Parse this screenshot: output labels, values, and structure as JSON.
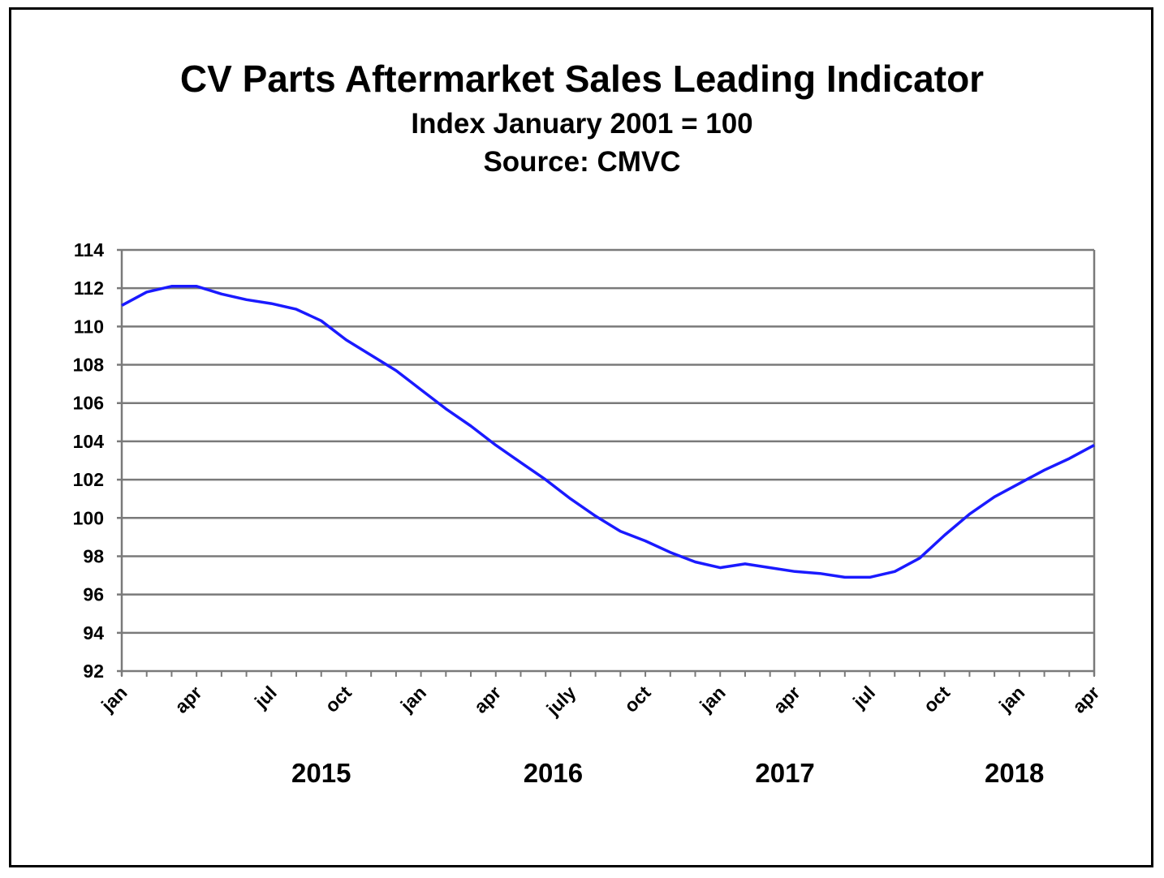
{
  "chart_data": {
    "type": "line",
    "title": "CV Parts Aftermarket Sales Leading Indicator",
    "subtitle": "Index January 2001 = 100",
    "source": "Source: CMVC",
    "xlabel": "",
    "ylabel": "",
    "ylim": [
      92,
      114
    ],
    "yticks": [
      "92",
      "94",
      "96",
      "98",
      "100",
      "102",
      "104",
      "106",
      "108",
      "110",
      "112",
      "114"
    ],
    "xtick_labels": [
      "jan",
      "apr",
      "jul",
      "oct",
      "jan",
      "apr",
      "july",
      "oct",
      "jan",
      "apr",
      "jul",
      "oct",
      "jan",
      "apr"
    ],
    "year_labels": [
      "2015",
      "2016",
      "2017",
      "2018"
    ],
    "grid": "horizontal",
    "line_color": "#1a1aff",
    "x": [
      "2015-01",
      "2015-02",
      "2015-03",
      "2015-04",
      "2015-05",
      "2015-06",
      "2015-07",
      "2015-08",
      "2015-09",
      "2015-10",
      "2015-11",
      "2015-12",
      "2016-01",
      "2016-02",
      "2016-03",
      "2016-04",
      "2016-05",
      "2016-06",
      "2016-07",
      "2016-08",
      "2016-09",
      "2016-10",
      "2016-11",
      "2016-12",
      "2017-01",
      "2017-02",
      "2017-03",
      "2017-04",
      "2017-05",
      "2017-06",
      "2017-07",
      "2017-08",
      "2017-09",
      "2017-10",
      "2017-11",
      "2017-12",
      "2018-01",
      "2018-02",
      "2018-03",
      "2018-04"
    ],
    "values": [
      111.1,
      111.8,
      112.1,
      112.1,
      111.7,
      111.4,
      111.2,
      110.9,
      110.3,
      109.3,
      108.5,
      107.7,
      106.7,
      105.7,
      104.8,
      103.8,
      102.9,
      102.0,
      101.0,
      100.1,
      99.3,
      98.8,
      98.2,
      97.7,
      97.4,
      97.6,
      97.4,
      97.2,
      97.1,
      96.9,
      96.9,
      97.2,
      97.9,
      99.1,
      100.2,
      101.1,
      101.8,
      102.5,
      103.1,
      103.8
    ]
  }
}
